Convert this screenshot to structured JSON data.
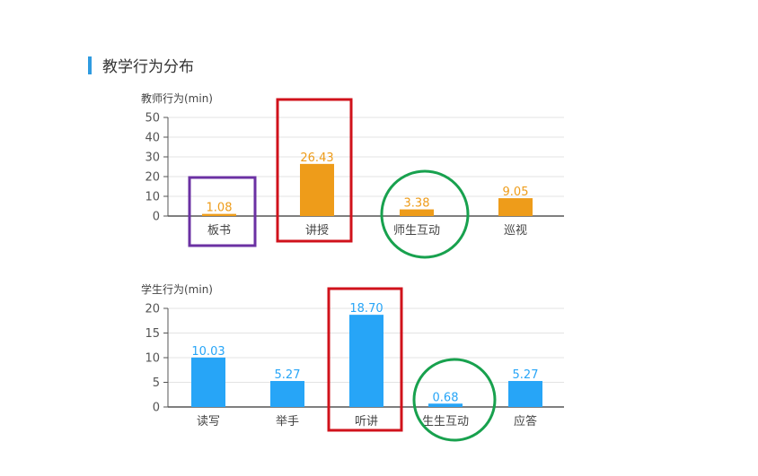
{
  "section": {
    "title": "教学行为分布"
  },
  "colors": {
    "teacher_bar": "#ee9c1a",
    "student_bar": "#27a5f7",
    "grid": "#e3e3e3",
    "axis": "#555555",
    "tick_text": "#555555",
    "box_purple": "#6b31a3",
    "box_red": "#d0121b",
    "circle_green": "#18a14e"
  },
  "chart_data": [
    {
      "id": "teacher",
      "type": "bar",
      "ylabel": "教师行为(min)",
      "ylim": [
        0,
        50
      ],
      "yticks": [
        0,
        10,
        20,
        30,
        40,
        50
      ],
      "categories": [
        "板书",
        "讲授",
        "师生互动",
        "巡视"
      ],
      "values": [
        1.08,
        26.43,
        3.38,
        9.05
      ],
      "value_labels": [
        "1.08",
        "26.43",
        "3.38",
        "9.05"
      ],
      "grid": true,
      "color": "#ee9c1a"
    },
    {
      "id": "student",
      "type": "bar",
      "ylabel": "学生行为(min)",
      "ylim": [
        0,
        20
      ],
      "yticks": [
        0,
        5,
        10,
        15,
        20
      ],
      "categories": [
        "读写",
        "举手",
        "听讲",
        "生生互动",
        "应答"
      ],
      "values": [
        10.03,
        5.27,
        18.7,
        0.68,
        5.27
      ],
      "value_labels": [
        "10.03",
        "5.27",
        "18.70",
        "0.68",
        "5.27"
      ],
      "grid": true,
      "color": "#27a5f7"
    }
  ],
  "annotations": [
    {
      "chart": "teacher",
      "category_index": 0,
      "shape": "rect",
      "color": "box_purple"
    },
    {
      "chart": "teacher",
      "category_index": 1,
      "shape": "rect",
      "color": "box_red"
    },
    {
      "chart": "teacher",
      "category_index": 2,
      "shape": "circle",
      "color": "circle_green"
    },
    {
      "chart": "student",
      "category_index": 2,
      "shape": "rect",
      "color": "box_red"
    },
    {
      "chart": "student",
      "category_index": 3,
      "shape": "circle",
      "color": "circle_green"
    }
  ]
}
